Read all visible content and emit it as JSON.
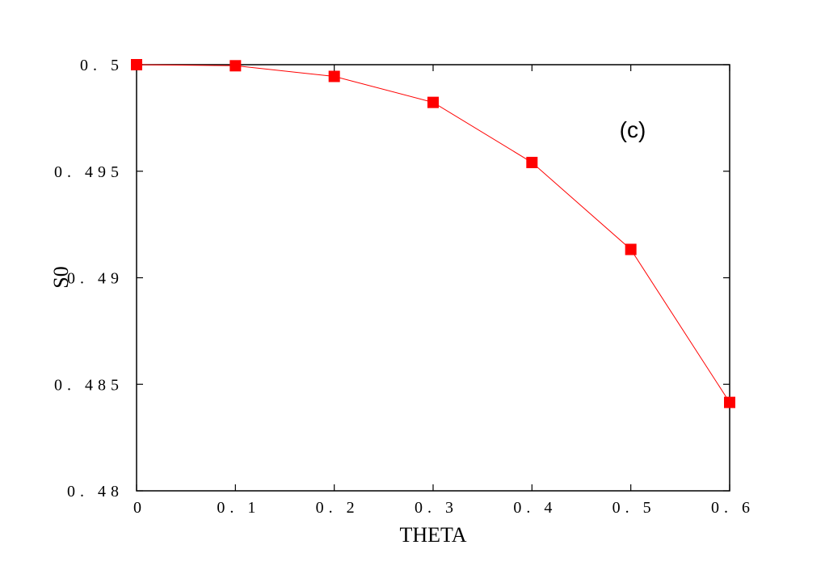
{
  "chart_data": {
    "type": "line",
    "title": "",
    "xlabel": "THETA",
    "ylabel": "S0",
    "xlim": [
      0,
      0.6
    ],
    "ylim": [
      0.48,
      0.5
    ],
    "grid": false,
    "x_ticks": [
      0,
      0.1,
      0.2,
      0.3,
      0.4,
      0.5,
      0.6
    ],
    "x_tick_labels": [
      "0",
      "0. 1",
      "0. 2",
      "0. 3",
      "0. 4",
      "0. 5",
      "0. 6"
    ],
    "y_ticks": [
      0.48,
      0.485,
      0.49,
      0.495,
      0.5
    ],
    "y_tick_labels": [
      "0. 48",
      "0. 485",
      "0. 49",
      "0. 495",
      "0. 5"
    ],
    "annotation": "(c)",
    "series": [
      {
        "color": "#ff0000",
        "marker": "square",
        "x": [
          0,
          0.1,
          0.2,
          0.3,
          0.4,
          0.5,
          0.6
        ],
        "y": [
          0.5,
          0.49995,
          0.49945,
          0.49823,
          0.49541,
          0.49133,
          0.48415
        ]
      }
    ]
  }
}
